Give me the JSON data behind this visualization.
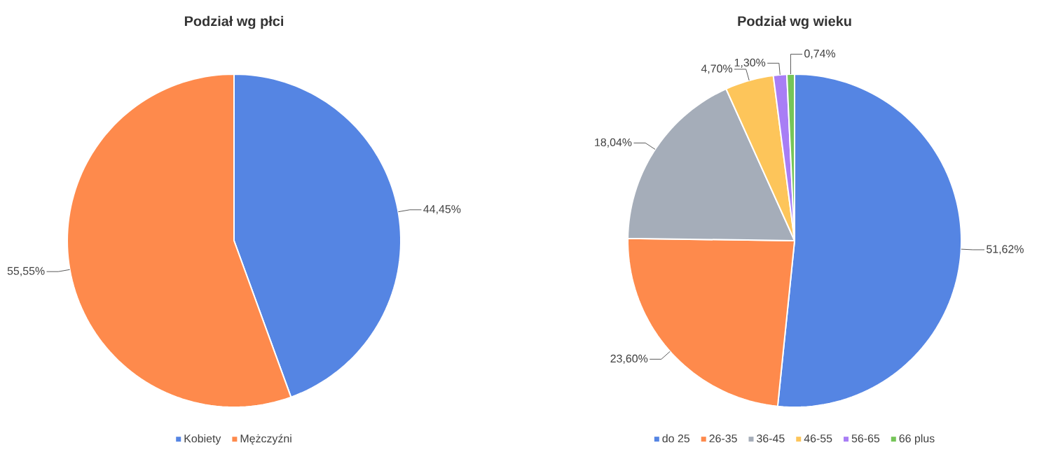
{
  "chart_data": [
    {
      "type": "pie",
      "title": "Podział wg płci",
      "categories": [
        "Kobiety",
        "Mężczyźni"
      ],
      "values": [
        44.45,
        55.55
      ],
      "colors": [
        "#5585e3",
        "#fe8a4c"
      ],
      "value_labels": [
        "44,45%",
        "55,55%"
      ],
      "legend": "bottom"
    },
    {
      "type": "pie",
      "title": "Podział wg wieku",
      "categories": [
        "do 25",
        "26-35",
        "36-45",
        "46-55",
        "56-65",
        "66 plus"
      ],
      "values": [
        51.62,
        23.6,
        18.04,
        4.7,
        1.3,
        0.74
      ],
      "colors": [
        "#5585e3",
        "#fe8a4c",
        "#a5adb9",
        "#fdc55a",
        "#a87ef5",
        "#76c559"
      ],
      "value_labels": [
        "51,62%",
        "23,60%",
        "18,04%",
        "4,70%",
        "1,30%",
        "0,74%"
      ],
      "legend": "bottom"
    }
  ]
}
